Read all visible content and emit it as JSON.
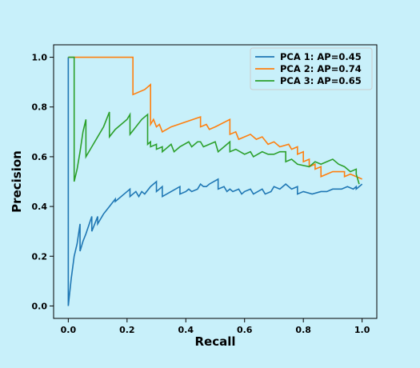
{
  "chart_data": {
    "type": "line",
    "title": "",
    "xlabel": "Recall",
    "ylabel": "Precision",
    "xlim": [
      -0.05,
      1.05
    ],
    "ylim": [
      -0.05,
      1.05
    ],
    "xticks": [
      0.0,
      0.2,
      0.4,
      0.6,
      0.8,
      1.0
    ],
    "yticks": [
      0.0,
      0.2,
      0.4,
      0.6,
      0.8,
      1.0
    ],
    "xtick_labels": [
      "0.0",
      "0.2",
      "0.4",
      "0.6",
      "0.8",
      "1.0"
    ],
    "ytick_labels": [
      "0.0",
      "0.2",
      "0.4",
      "0.6",
      "0.8",
      "1.0"
    ],
    "grid": false,
    "legend": "top-right",
    "series": [
      {
        "name": "PCA 1: AP=0.45",
        "color": "#1f77b4",
        "points": [
          [
            0.0,
            1.0
          ],
          [
            0.0,
            0.0
          ],
          [
            0.01,
            0.11
          ],
          [
            0.02,
            0.2
          ],
          [
            0.03,
            0.25
          ],
          [
            0.04,
            0.33
          ],
          [
            0.04,
            0.22
          ],
          [
            0.05,
            0.26
          ],
          [
            0.06,
            0.29
          ],
          [
            0.08,
            0.36
          ],
          [
            0.08,
            0.3
          ],
          [
            0.1,
            0.36
          ],
          [
            0.1,
            0.33
          ],
          [
            0.12,
            0.37
          ],
          [
            0.14,
            0.4
          ],
          [
            0.16,
            0.43
          ],
          [
            0.16,
            0.42
          ],
          [
            0.2,
            0.46
          ],
          [
            0.21,
            0.47
          ],
          [
            0.21,
            0.44
          ],
          [
            0.23,
            0.46
          ],
          [
            0.24,
            0.44
          ],
          [
            0.25,
            0.46
          ],
          [
            0.26,
            0.45
          ],
          [
            0.28,
            0.48
          ],
          [
            0.3,
            0.5
          ],
          [
            0.3,
            0.46
          ],
          [
            0.32,
            0.48
          ],
          [
            0.32,
            0.44
          ],
          [
            0.35,
            0.46
          ],
          [
            0.38,
            0.48
          ],
          [
            0.38,
            0.45
          ],
          [
            0.4,
            0.46
          ],
          [
            0.41,
            0.47
          ],
          [
            0.42,
            0.46
          ],
          [
            0.44,
            0.47
          ],
          [
            0.45,
            0.49
          ],
          [
            0.46,
            0.48
          ],
          [
            0.47,
            0.48
          ],
          [
            0.48,
            0.49
          ],
          [
            0.51,
            0.51
          ],
          [
            0.51,
            0.47
          ],
          [
            0.53,
            0.48
          ],
          [
            0.54,
            0.46
          ],
          [
            0.55,
            0.47
          ],
          [
            0.56,
            0.46
          ],
          [
            0.58,
            0.47
          ],
          [
            0.59,
            0.45
          ],
          [
            0.6,
            0.46
          ],
          [
            0.62,
            0.47
          ],
          [
            0.63,
            0.45
          ],
          [
            0.66,
            0.47
          ],
          [
            0.67,
            0.45
          ],
          [
            0.69,
            0.46
          ],
          [
            0.7,
            0.48
          ],
          [
            0.72,
            0.47
          ],
          [
            0.74,
            0.49
          ],
          [
            0.76,
            0.47
          ],
          [
            0.78,
            0.48
          ],
          [
            0.78,
            0.45
          ],
          [
            0.8,
            0.46
          ],
          [
            0.83,
            0.45
          ],
          [
            0.86,
            0.46
          ],
          [
            0.88,
            0.46
          ],
          [
            0.9,
            0.47
          ],
          [
            0.93,
            0.47
          ],
          [
            0.95,
            0.48
          ],
          [
            0.97,
            0.47
          ],
          [
            0.98,
            0.48
          ],
          [
            0.98,
            0.47
          ],
          [
            0.99,
            0.48
          ],
          [
            1.0,
            0.49
          ]
        ]
      },
      {
        "name": "PCA 2: AP=0.74",
        "color": "#ff7f0e",
        "points": [
          [
            0.0,
            1.0
          ],
          [
            0.22,
            1.0
          ],
          [
            0.22,
            0.85
          ],
          [
            0.26,
            0.87
          ],
          [
            0.28,
            0.89
          ],
          [
            0.28,
            0.73
          ],
          [
            0.29,
            0.75
          ],
          [
            0.3,
            0.72
          ],
          [
            0.31,
            0.73
          ],
          [
            0.32,
            0.7
          ],
          [
            0.35,
            0.72
          ],
          [
            0.45,
            0.76
          ],
          [
            0.45,
            0.72
          ],
          [
            0.47,
            0.73
          ],
          [
            0.48,
            0.71
          ],
          [
            0.5,
            0.72
          ],
          [
            0.55,
            0.75
          ],
          [
            0.55,
            0.69
          ],
          [
            0.57,
            0.7
          ],
          [
            0.58,
            0.67
          ],
          [
            0.62,
            0.69
          ],
          [
            0.64,
            0.67
          ],
          [
            0.66,
            0.68
          ],
          [
            0.68,
            0.65
          ],
          [
            0.7,
            0.66
          ],
          [
            0.72,
            0.64
          ],
          [
            0.75,
            0.65
          ],
          [
            0.76,
            0.63
          ],
          [
            0.78,
            0.64
          ],
          [
            0.78,
            0.61
          ],
          [
            0.8,
            0.62
          ],
          [
            0.8,
            0.58
          ],
          [
            0.82,
            0.59
          ],
          [
            0.82,
            0.56
          ],
          [
            0.84,
            0.57
          ],
          [
            0.84,
            0.55
          ],
          [
            0.86,
            0.56
          ],
          [
            0.86,
            0.52
          ],
          [
            0.9,
            0.54
          ],
          [
            0.94,
            0.54
          ],
          [
            0.94,
            0.52
          ],
          [
            0.96,
            0.53
          ],
          [
            0.98,
            0.52
          ],
          [
            1.0,
            0.51
          ]
        ]
      },
      {
        "name": "PCA 3: AP=0.65",
        "color": "#2ca02c",
        "points": [
          [
            0.0,
            1.0
          ],
          [
            0.02,
            1.0
          ],
          [
            0.02,
            0.5
          ],
          [
            0.03,
            0.55
          ],
          [
            0.04,
            0.62
          ],
          [
            0.05,
            0.7
          ],
          [
            0.06,
            0.75
          ],
          [
            0.06,
            0.6
          ],
          [
            0.08,
            0.64
          ],
          [
            0.1,
            0.68
          ],
          [
            0.12,
            0.72
          ],
          [
            0.14,
            0.78
          ],
          [
            0.14,
            0.68
          ],
          [
            0.16,
            0.71
          ],
          [
            0.18,
            0.73
          ],
          [
            0.2,
            0.75
          ],
          [
            0.21,
            0.77
          ],
          [
            0.21,
            0.69
          ],
          [
            0.23,
            0.72
          ],
          [
            0.25,
            0.75
          ],
          [
            0.27,
            0.77
          ],
          [
            0.27,
            0.65
          ],
          [
            0.28,
            0.66
          ],
          [
            0.28,
            0.64
          ],
          [
            0.3,
            0.65
          ],
          [
            0.3,
            0.63
          ],
          [
            0.32,
            0.64
          ],
          [
            0.32,
            0.62
          ],
          [
            0.34,
            0.64
          ],
          [
            0.35,
            0.65
          ],
          [
            0.36,
            0.62
          ],
          [
            0.38,
            0.64
          ],
          [
            0.41,
            0.66
          ],
          [
            0.42,
            0.64
          ],
          [
            0.44,
            0.66
          ],
          [
            0.45,
            0.66
          ],
          [
            0.46,
            0.64
          ],
          [
            0.48,
            0.65
          ],
          [
            0.5,
            0.66
          ],
          [
            0.51,
            0.62
          ],
          [
            0.53,
            0.64
          ],
          [
            0.55,
            0.66
          ],
          [
            0.55,
            0.62
          ],
          [
            0.57,
            0.63
          ],
          [
            0.6,
            0.61
          ],
          [
            0.62,
            0.62
          ],
          [
            0.63,
            0.6
          ],
          [
            0.66,
            0.62
          ],
          [
            0.68,
            0.61
          ],
          [
            0.7,
            0.61
          ],
          [
            0.72,
            0.62
          ],
          [
            0.74,
            0.62
          ],
          [
            0.74,
            0.58
          ],
          [
            0.76,
            0.59
          ],
          [
            0.78,
            0.57
          ],
          [
            0.82,
            0.56
          ],
          [
            0.84,
            0.58
          ],
          [
            0.86,
            0.57
          ],
          [
            0.88,
            0.58
          ],
          [
            0.9,
            0.59
          ],
          [
            0.92,
            0.57
          ],
          [
            0.94,
            0.56
          ],
          [
            0.96,
            0.54
          ],
          [
            0.98,
            0.55
          ],
          [
            0.98,
            0.53
          ],
          [
            0.99,
            0.49
          ]
        ]
      }
    ]
  }
}
